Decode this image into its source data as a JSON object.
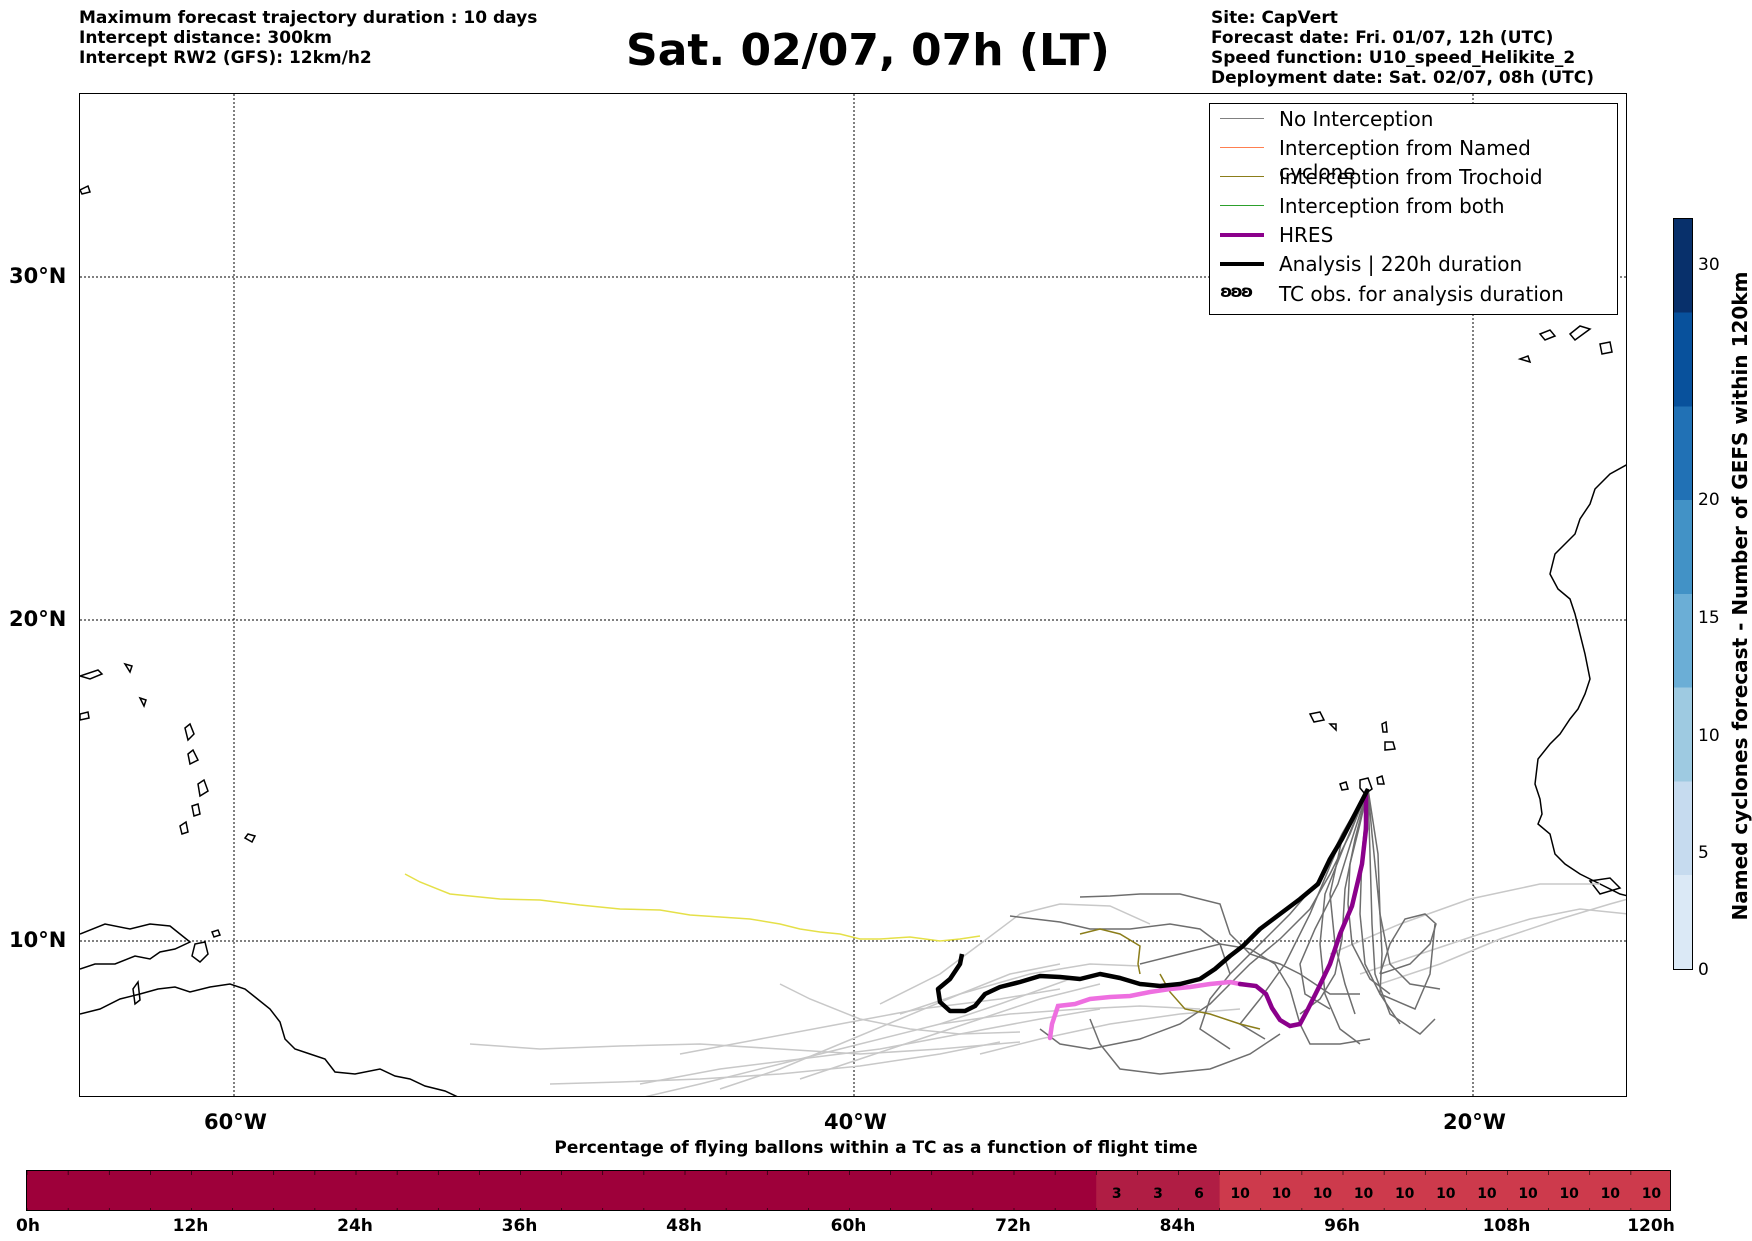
{
  "header": {
    "left_info": [
      "Maximum forecast trajectory duration : 10 days",
      "Intercept distance: 300km",
      "Intercept RW2 (GFS):  12km/h2"
    ],
    "title": "Sat. 02/07, 07h (LT)",
    "right_info": [
      "Site: CapVert",
      "Forecast date: Fri. 01/07, 12h (UTC)",
      "Speed function: U10_speed_Helikite_2",
      "Deployment date: Sat. 02/07, 08h (UTC)"
    ]
  },
  "map": {
    "lat_labels": [
      "30°N",
      "20°N",
      "10°N"
    ],
    "lon_labels": [
      "60°W",
      "40°W",
      "20°W"
    ]
  },
  "legend": {
    "items": [
      {
        "label": "No Interception",
        "color": "#808080"
      },
      {
        "label": "Interception from Named cyclone",
        "color": "#ff7f50"
      },
      {
        "label": "Interception from Trochoid",
        "color": "#8b7d1a"
      },
      {
        "label": "Interception from both",
        "color": "#2ca02c"
      },
      {
        "label": "HRES",
        "color": "#8b008b"
      },
      {
        "label": "Analysis | 220h duration",
        "color": "#000000"
      },
      {
        "label": "TC obs. for analysis duration",
        "symbol": "ʚʚʚ"
      }
    ]
  },
  "colorbar": {
    "label": "Named cyclones forecast - Number of GEFS within 120km",
    "ticks": [
      "0",
      "5",
      "10",
      "15",
      "20",
      "30"
    ],
    "colors": [
      "#dbe9f6",
      "#c6dbef",
      "#9ecae1",
      "#6baed6",
      "#4292c6",
      "#2171b5",
      "#08519c",
      "#08306b"
    ]
  },
  "chart_data": {
    "type": "bar",
    "title": "Percentage of flying ballons within a TC as a function of flight time",
    "hour_labels": [
      "0h",
      "12h",
      "24h",
      "36h",
      "48h",
      "60h",
      "72h",
      "84h",
      "96h",
      "108h",
      "120h"
    ],
    "cell_hours": 3,
    "values": [
      0,
      0,
      0,
      0,
      0,
      0,
      0,
      0,
      0,
      0,
      0,
      0,
      0,
      0,
      0,
      0,
      0,
      0,
      0,
      0,
      0,
      0,
      0,
      0,
      0,
      0,
      3,
      3,
      6,
      10,
      10,
      10,
      10,
      10,
      10,
      10,
      10,
      10,
      10,
      10
    ],
    "cell_labels": [
      "",
      "",
      "",
      "",
      "",
      "",
      "",
      "",
      "",
      "",
      "",
      "",
      "",
      "",
      "",
      "",
      "",
      "",
      "",
      "",
      "",
      "",
      "",
      "",
      "",
      "",
      "3",
      "3",
      "6",
      "10",
      "10",
      "10",
      "10",
      "10",
      "10",
      "10",
      "10",
      "10",
      "10",
      "10"
    ],
    "colors": {
      "zero": "#9e003a",
      "low": "#b01d44",
      "high": "#cd3a4c"
    }
  }
}
